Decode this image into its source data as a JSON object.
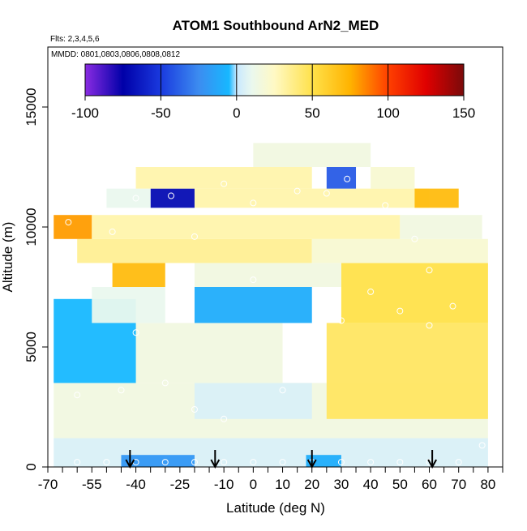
{
  "chart_data": {
    "type": "heatmap",
    "title": "ATOM1 Southbound ArN2_MED",
    "flights_note": "Flts: 2,3,4,5,6",
    "dates_note": "MMDD: 0801,0803,0806,0808,0812",
    "xlabel": "Latitude (deg N)",
    "ylabel": "Altitude (m)",
    "xlim": [
      -70,
      85
    ],
    "ylim": [
      0,
      17500
    ],
    "x_ticks": [
      {
        "value": -70,
        "label": "-70"
      },
      {
        "value": -55,
        "label": "-55"
      },
      {
        "value": -40,
        "label": "-40"
      },
      {
        "value": -25,
        "label": "-25"
      },
      {
        "value": -10,
        "label": "-10"
      },
      {
        "value": 0,
        "label": "0"
      },
      {
        "value": 10,
        "label": "10"
      },
      {
        "value": 20,
        "label": "20"
      },
      {
        "value": 30,
        "label": "30"
      },
      {
        "value": 40,
        "label": "40"
      },
      {
        "value": 50,
        "label": "50"
      },
      {
        "value": 60,
        "label": "60"
      },
      {
        "value": 70,
        "label": "70"
      },
      {
        "value": 80,
        "label": "80"
      }
    ],
    "x_minor_ticks": [
      -65,
      -60,
      -50,
      -45,
      -35,
      -30,
      -20,
      -15,
      -5,
      5,
      15,
      25,
      35,
      45,
      55,
      65,
      75,
      85
    ],
    "y_ticks": [
      {
        "value": 0,
        "label": "0"
      },
      {
        "value": 5000,
        "label": "5000"
      },
      {
        "value": 10000,
        "label": "10000"
      },
      {
        "value": 15000,
        "label": "15000"
      }
    ],
    "colorbar": {
      "min": -100,
      "max": 150,
      "ticks": [
        {
          "value": -100,
          "label": "-100"
        },
        {
          "value": -50,
          "label": "-50"
        },
        {
          "value": 0,
          "label": "0"
        },
        {
          "value": 50,
          "label": "50"
        },
        {
          "value": 100,
          "label": "100"
        },
        {
          "value": 150,
          "label": "150"
        }
      ],
      "stops": [
        {
          "value": -100,
          "color": "#8a2be2"
        },
        {
          "value": -75,
          "color": "#0000a8"
        },
        {
          "value": -50,
          "color": "#1a3adf"
        },
        {
          "value": -25,
          "color": "#3c8cf0"
        },
        {
          "value": -5,
          "color": "#17b8ff"
        },
        {
          "value": 0,
          "color": "#c8e8ff"
        },
        {
          "value": 10,
          "color": "#eaf8ee"
        },
        {
          "value": 25,
          "color": "#fff9c4"
        },
        {
          "value": 50,
          "color": "#ffe14a"
        },
        {
          "value": 75,
          "color": "#ffb300"
        },
        {
          "value": 100,
          "color": "#ff4000"
        },
        {
          "value": 125,
          "color": "#e00000"
        },
        {
          "value": 150,
          "color": "#7a0a0a"
        }
      ]
    },
    "profile_markers_lat": [
      -42,
      -13,
      20,
      61
    ],
    "regions": [
      {
        "lat": [
          -68,
          80
        ],
        "alt": [
          0,
          1200
        ],
        "value": 5
      },
      {
        "lat": [
          -45,
          -20
        ],
        "alt": [
          0,
          500
        ],
        "value": -20
      },
      {
        "lat": [
          18,
          30
        ],
        "alt": [
          0,
          500
        ],
        "value": -10
      },
      {
        "lat": [
          -68,
          80
        ],
        "alt": [
          1200,
          3500
        ],
        "value": 15
      },
      {
        "lat": [
          -20,
          20
        ],
        "alt": [
          2000,
          3500
        ],
        "value": 5
      },
      {
        "lat": [
          25,
          80
        ],
        "alt": [
          2000,
          6000
        ],
        "value": 45
      },
      {
        "lat": [
          -40,
          10
        ],
        "alt": [
          3500,
          6000
        ],
        "value": 15
      },
      {
        "lat": [
          -68,
          -40
        ],
        "alt": [
          3500,
          7000
        ],
        "value": -5
      },
      {
        "lat": [
          -55,
          -30
        ],
        "alt": [
          6000,
          7500
        ],
        "value": 10
      },
      {
        "lat": [
          -20,
          20
        ],
        "alt": [
          6000,
          7500
        ],
        "value": -10
      },
      {
        "lat": [
          30,
          80
        ],
        "alt": [
          6000,
          8500
        ],
        "value": 50
      },
      {
        "lat": [
          -48,
          -30
        ],
        "alt": [
          7500,
          8500
        ],
        "value": 70
      },
      {
        "lat": [
          -20,
          30
        ],
        "alt": [
          7500,
          8500
        ],
        "value": 15
      },
      {
        "lat": [
          -60,
          20
        ],
        "alt": [
          8500,
          9500
        ],
        "value": 35
      },
      {
        "lat": [
          20,
          80
        ],
        "alt": [
          8500,
          9500
        ],
        "value": 20
      },
      {
        "lat": [
          -68,
          -55
        ],
        "alt": [
          9500,
          10500
        ],
        "value": 80
      },
      {
        "lat": [
          -55,
          50
        ],
        "alt": [
          9500,
          10500
        ],
        "value": 30
      },
      {
        "lat": [
          50,
          78
        ],
        "alt": [
          9500,
          10500
        ],
        "value": 15
      },
      {
        "lat": [
          -35,
          -20
        ],
        "alt": [
          10800,
          11600
        ],
        "value": -70
      },
      {
        "lat": [
          -50,
          -35
        ],
        "alt": [
          10800,
          11600
        ],
        "value": 10
      },
      {
        "lat": [
          -20,
          60
        ],
        "alt": [
          10800,
          11600
        ],
        "value": 30
      },
      {
        "lat": [
          55,
          70
        ],
        "alt": [
          10800,
          11600
        ],
        "value": 70
      },
      {
        "lat": [
          -40,
          20
        ],
        "alt": [
          11600,
          12500
        ],
        "value": 30
      },
      {
        "lat": [
          25,
          35
        ],
        "alt": [
          11600,
          12500
        ],
        "value": -40
      },
      {
        "lat": [
          40,
          55
        ],
        "alt": [
          11600,
          12500
        ],
        "value": 20
      },
      {
        "lat": [
          0,
          40
        ],
        "alt": [
          12500,
          13500
        ],
        "value": 15
      }
    ],
    "sample_points": [
      [
        -63,
        10200
      ],
      [
        -48,
        9800
      ],
      [
        -40,
        11200
      ],
      [
        -28,
        11300
      ],
      [
        -20,
        9600
      ],
      [
        -10,
        11800
      ],
      [
        0,
        11000
      ],
      [
        15,
        11500
      ],
      [
        25,
        11400
      ],
      [
        32,
        12000
      ],
      [
        45,
        10900
      ],
      [
        55,
        9500
      ],
      [
        60,
        8200
      ],
      [
        -60,
        3000
      ],
      [
        -45,
        3200
      ],
      [
        -40,
        5600
      ],
      [
        -30,
        3500
      ],
      [
        -20,
        2400
      ],
      [
        -10,
        2000
      ],
      [
        0,
        7800
      ],
      [
        10,
        3200
      ],
      [
        20,
        4000
      ],
      [
        30,
        6100
      ],
      [
        40,
        7300
      ],
      [
        50,
        6500
      ],
      [
        60,
        5900
      ],
      [
        68,
        6700
      ],
      [
        -60,
        200
      ],
      [
        -50,
        200
      ],
      [
        -40,
        200
      ],
      [
        -30,
        200
      ],
      [
        -20,
        200
      ],
      [
        -10,
        200
      ],
      [
        0,
        200
      ],
      [
        10,
        200
      ],
      [
        20,
        200
      ],
      [
        30,
        200
      ],
      [
        40,
        200
      ],
      [
        50,
        200
      ],
      [
        60,
        200
      ],
      [
        70,
        200
      ],
      [
        78,
        900
      ]
    ]
  }
}
